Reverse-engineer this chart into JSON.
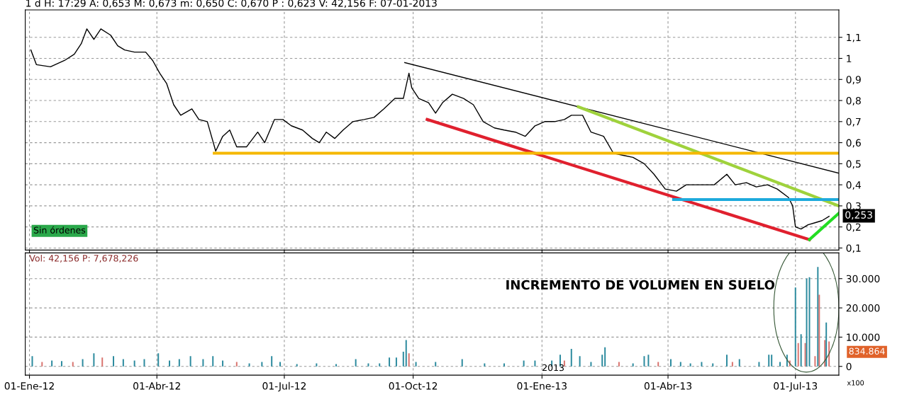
{
  "chart_data": [
    {
      "type": "line",
      "xlim": [
        "2011-12-29",
        "2013-08-01"
      ],
      "ylim": [
        0.09,
        1.23
      ],
      "yticks": [
        {
          "value": 0.1,
          "label": "0,1"
        },
        {
          "value": 0.2,
          "label": "0,2"
        },
        {
          "value": 0.3,
          "label": "0,3"
        },
        {
          "value": 0.4,
          "label": "0,4"
        },
        {
          "value": 0.5,
          "label": "0,5"
        },
        {
          "value": 0.6,
          "label": "0,6"
        },
        {
          "value": 0.7,
          "label": "0,7"
        },
        {
          "value": 0.8,
          "label": "0,8"
        },
        {
          "value": 0.9,
          "label": "0,9"
        },
        1,
        {
          "value": 1.1,
          "label": "1,1"
        }
      ],
      "tick_labels": "y",
      "grid": true,
      "line_style": "solid",
      "annotations": [
        "1 d H: 17:29 A: 0,653 M: 0,673 m: 0,650 C: 0,670 P : 0,623 V: 42,156 F: 07-01-2013",
        "Sin órdenes",
        {
          "text": "0,253",
          "x": "2013-08-01",
          "y": 0.253
        }
      ],
      "series": [
        {
          "color": "#000000",
          "x": [
            "2012-01-02",
            "2012-01-06",
            "2012-01-16",
            "2012-01-26",
            "2012-02-02",
            "2012-02-07",
            "2012-02-11",
            "2012-02-16",
            "2012-02-21",
            "2012-02-28",
            "2012-03-04",
            "2012-03-09",
            "2012-03-16",
            "2012-03-24",
            "2012-03-29",
            "2012-04-03",
            "2012-04-08",
            "2012-04-13",
            "2012-04-18",
            "2012-04-26",
            "2012-05-01",
            "2012-05-07",
            "2012-05-13",
            "2012-05-18",
            "2012-05-23",
            "2012-05-28",
            "2012-06-04",
            "2012-06-12",
            "2012-06-17",
            "2012-06-24",
            "2012-06-30",
            "2012-07-06",
            "2012-07-14",
            "2012-07-21",
            "2012-07-26",
            "2012-07-31",
            "2012-08-06",
            "2012-08-12",
            "2012-08-19",
            "2012-08-27",
            "2012-09-03",
            "2012-09-10",
            "2012-09-18",
            "2012-09-24",
            "2012-09-28",
            "2012-09-30",
            "2012-10-05",
            "2012-10-12",
            "2012-10-17",
            "2012-10-22",
            "2012-10-29",
            "2012-11-06",
            "2012-11-13",
            "2012-11-20",
            "2012-11-28",
            "2012-12-05",
            "2012-12-13",
            "2012-12-20",
            "2012-12-27",
            "2013-01-03",
            "2013-01-10",
            "2013-01-17",
            "2013-01-22",
            "2013-01-30",
            "2013-02-05",
            "2013-02-14",
            "2013-02-21",
            "2013-02-28",
            "2013-03-07",
            "2013-03-15",
            "2013-03-22",
            "2013-03-30",
            "2013-04-07",
            "2013-04-14",
            "2013-04-24",
            "2013-05-04",
            "2013-05-13",
            "2013-05-19",
            "2013-05-27",
            "2013-06-03",
            "2013-06-11",
            "2013-06-18",
            "2013-06-26",
            "2013-06-29",
            "2013-07-01",
            "2013-07-05",
            "2013-07-10",
            "2013-07-15",
            "2013-07-20",
            "2013-07-25"
          ],
          "values": [
            1.04,
            0.97,
            0.96,
            0.99,
            1.02,
            1.07,
            1.14,
            1.09,
            1.14,
            1.11,
            1.06,
            1.04,
            1.03,
            1.03,
            0.99,
            0.93,
            0.88,
            0.78,
            0.73,
            0.76,
            0.71,
            0.7,
            0.56,
            0.63,
            0.66,
            0.58,
            0.58,
            0.65,
            0.6,
            0.71,
            0.71,
            0.68,
            0.66,
            0.62,
            0.6,
            0.65,
            0.62,
            0.66,
            0.7,
            0.71,
            0.72,
            0.76,
            0.81,
            0.81,
            0.93,
            0.86,
            0.81,
            0.79,
            0.74,
            0.79,
            0.83,
            0.81,
            0.78,
            0.7,
            0.67,
            0.66,
            0.65,
            0.63,
            0.68,
            0.7,
            0.7,
            0.71,
            0.73,
            0.73,
            0.65,
            0.63,
            0.55,
            0.54,
            0.53,
            0.5,
            0.45,
            0.38,
            0.37,
            0.4,
            0.4,
            0.4,
            0.45,
            0.4,
            0.41,
            0.39,
            0.4,
            0.38,
            0.34,
            0.3,
            0.2,
            0.19,
            0.21,
            0.22,
            0.23,
            0.25
          ]
        },
        {
          "color": "#000000",
          "x": [
            "2012-09-25",
            "2013-08-01"
          ],
          "values": [
            0.98,
            0.455
          ]
        },
        {
          "color": "#9fd23c",
          "x": [
            "2013-01-27",
            "2013-08-01"
          ],
          "values": [
            0.77,
            0.3
          ]
        },
        {
          "color": "#e0202e",
          "x": [
            "2012-10-11",
            "2013-07-11"
          ],
          "values": [
            0.71,
            0.14
          ]
        },
        {
          "color": "#f5b800",
          "x": [
            "2012-05-12",
            "2013-08-01"
          ],
          "values": [
            0.55,
            0.55
          ]
        },
        {
          "color": "#1eaadc",
          "x": [
            "2013-04-05",
            "2013-08-01"
          ],
          "values": [
            0.33,
            0.33
          ]
        },
        {
          "color": "#22dd22",
          "x": [
            "2013-07-11",
            "2013-08-01"
          ],
          "values": [
            0.14,
            0.265
          ]
        }
      ]
    },
    {
      "type": "bar",
      "xlim": [
        "2011-12-29",
        "2013-08-01"
      ],
      "ylim": [
        -3000,
        38800
      ],
      "xticks": [
        {
          "value": "2012-01-01",
          "label": "01-Ene-12"
        },
        {
          "value": "2012-04-01",
          "label": "01-Abr-12"
        },
        {
          "value": "2012-07-01",
          "label": "01-Jul-12"
        },
        {
          "value": "2012-10-01",
          "label": "01-Oct-12"
        },
        {
          "value": "2013-01-01",
          "label": "01-Ene-13"
        },
        {
          "value": "2013-04-01",
          "label": "01-Abr-13"
        },
        {
          "value": "2013-07-01",
          "label": "01-Jul-13"
        }
      ],
      "yticks": [
        0,
        {
          "value": 10000,
          "label": "10.000"
        },
        {
          "value": 20000,
          "label": "20.000"
        },
        {
          "value": 30000,
          "label": "30.000"
        }
      ],
      "grid": true,
      "annotations": [
        "Vol: 42,156 P: 7,678,226",
        "INCREMENTO DE VOLUMEN EN SUELO",
        "834.864",
        "2013",
        "x100"
      ],
      "x": [
        "2012-01-03",
        "2012-01-10",
        "2012-01-17",
        "2012-01-24",
        "2012-02-01",
        "2012-02-08",
        "2012-02-16",
        "2012-02-22",
        "2012-03-01",
        "2012-03-08",
        "2012-03-16",
        "2012-03-23",
        "2012-04-02",
        "2012-04-10",
        "2012-04-17",
        "2012-04-25",
        "2012-05-04",
        "2012-05-11",
        "2012-05-18",
        "2012-05-28",
        "2012-06-06",
        "2012-06-15",
        "2012-06-22",
        "2012-06-28",
        "2012-07-10",
        "2012-07-24",
        "2012-08-07",
        "2012-08-21",
        "2012-08-30",
        "2012-09-07",
        "2012-09-14",
        "2012-09-19",
        "2012-09-24",
        "2012-09-26",
        "2012-09-28",
        "2012-10-03",
        "2012-10-17",
        "2012-11-05",
        "2012-11-21",
        "2012-12-05",
        "2012-12-19",
        "2012-12-27",
        "2013-01-08",
        "2013-01-14",
        "2013-01-17",
        "2013-01-22",
        "2013-01-28",
        "2013-02-05",
        "2013-02-13",
        "2013-02-15",
        "2013-02-25",
        "2013-03-07",
        "2013-03-15",
        "2013-03-18",
        "2013-03-25",
        "2013-04-03",
        "2013-04-10",
        "2013-04-17",
        "2013-04-25",
        "2013-05-03",
        "2013-05-13",
        "2013-05-17",
        "2013-05-22",
        "2013-06-05",
        "2013-06-12",
        "2013-06-14",
        "2013-06-20",
        "2013-06-25",
        "2013-06-27",
        "2013-07-01",
        "2013-07-03",
        "2013-07-05",
        "2013-07-08",
        "2013-07-09",
        "2013-07-11",
        "2013-07-15",
        "2013-07-17",
        "2013-07-18",
        "2013-07-22",
        "2013-07-23",
        "2013-07-25"
      ],
      "values": [
        3500,
        1500,
        2000,
        1800,
        1500,
        2500,
        4500,
        3000,
        3500,
        2500,
        2000,
        2500,
        4500,
        2000,
        2500,
        3500,
        2500,
        3500,
        2000,
        1500,
        1000,
        1500,
        3500,
        1500,
        800,
        1000,
        800,
        2500,
        1000,
        1000,
        3000,
        3000,
        5000,
        9000,
        4500,
        1500,
        1500,
        2500,
        1000,
        1000,
        2000,
        2000,
        2000,
        4000,
        2000,
        6000,
        3500,
        1500,
        4000,
        6500,
        1500,
        1000,
        3500,
        4000,
        1500,
        2500,
        1500,
        1000,
        1500,
        1000,
        4000,
        1500,
        2500,
        1500,
        4000,
        4000,
        1500,
        4000,
        2000,
        27000,
        8000,
        11000,
        8000,
        30000,
        30500,
        3500,
        34000,
        24500,
        9000,
        15000,
        8500
      ],
      "colors": [
        "#2b8a9e",
        "#d9736e",
        "#2b8a9e",
        "#2b8a9e",
        "#d9736e",
        "#2b8a9e",
        "#2b8a9e",
        "#d9736e",
        "#2b8a9e",
        "#2b8a9e",
        "#2b8a9e",
        "#2b8a9e",
        "#2b8a9e",
        "#2b8a9e",
        "#2b8a9e",
        "#2b8a9e",
        "#2b8a9e",
        "#2b8a9e",
        "#2b8a9e",
        "#d9736e",
        "#2b8a9e",
        "#2b8a9e",
        "#2b8a9e",
        "#2b8a9e",
        "#2b8a9e",
        "#2b8a9e",
        "#2b8a9e",
        "#2b8a9e",
        "#2b8a9e",
        "#2b8a9e",
        "#2b8a9e",
        "#2b8a9e",
        "#2b8a9e",
        "#2b8a9e",
        "#d9736e",
        "#2b8a9e",
        "#2b8a9e",
        "#2b8a9e",
        "#2b8a9e",
        "#2b8a9e",
        "#2b8a9e",
        "#2b8a9e",
        "#2b8a9e",
        "#2b8a9e",
        "#d9736e",
        "#2b8a9e",
        "#2b8a9e",
        "#2b8a9e",
        "#2b8a9e",
        "#2b8a9e",
        "#d9736e",
        "#2b8a9e",
        "#2b8a9e",
        "#2b8a9e",
        "#d9736e",
        "#2b8a9e",
        "#2b8a9e",
        "#2b8a9e",
        "#2b8a9e",
        "#2b8a9e",
        "#2b8a9e",
        "#d9736e",
        "#2b8a9e",
        "#2b8a9e",
        "#2b8a9e",
        "#2b8a9e",
        "#2b8a9e",
        "#2b8a9e",
        "#d9736e",
        "#2b8a9e",
        "#d9736e",
        "#2b8a9e",
        "#d9736e",
        "#2b8a9e",
        "#2b8a9e",
        "#d9736e",
        "#2b8a9e",
        "#d9736e",
        "#d9736e",
        "#2b8a9e",
        "#d9736e"
      ]
    }
  ]
}
